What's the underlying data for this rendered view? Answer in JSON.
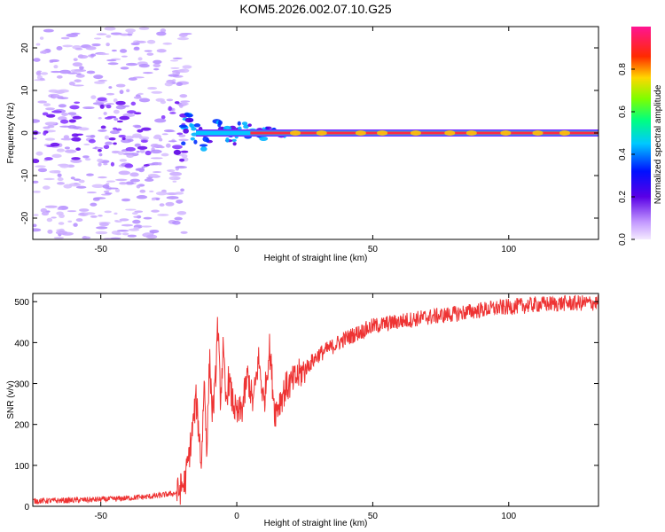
{
  "title": "KOM5.2026.002.07.10.G25",
  "chart_data": [
    {
      "type": "heatmap",
      "name": "spectrogram",
      "xlabel": "Height of straight line (km)",
      "ylabel": "Frequency (Hz)",
      "xlim": [
        -75,
        133
      ],
      "ylim": [
        -25,
        25
      ],
      "xticks": [
        -50,
        0,
        50,
        100
      ],
      "yticks": [
        -20,
        -10,
        0,
        10,
        20
      ],
      "grid": false,
      "description_points": {
        "noise_region_km": [
          -75,
          -20
        ],
        "transition_km": [
          -20,
          25
        ],
        "stable_line_frequency_hz": 0
      },
      "colorbar": {
        "label": "Normalized spectral amplitude",
        "range": [
          0.0,
          1.0
        ],
        "ticks": [
          0.0,
          0.2,
          0.4,
          0.6,
          0.8
        ]
      }
    },
    {
      "type": "line",
      "name": "snr",
      "xlabel": "Height of straight line (km)",
      "ylabel": "SNR (v/v)",
      "xlim": [
        -75,
        133
      ],
      "ylim": [
        0,
        520
      ],
      "xticks": [
        -50,
        0,
        50,
        100
      ],
      "yticks": [
        0,
        100,
        200,
        300,
        400,
        500
      ],
      "grid": false,
      "color": "#ee3333",
      "series": [
        {
          "name": "SNR",
          "x": [
            -75,
            -60,
            -45,
            -30,
            -22,
            -19,
            -17,
            -15,
            -14,
            -13,
            -12,
            -11,
            -10,
            -9,
            -8,
            -7,
            -6,
            -5,
            -4,
            -3,
            -2,
            0,
            2,
            4,
            6,
            8,
            10,
            12,
            14,
            16,
            18,
            20,
            22,
            25,
            30,
            35,
            40,
            45,
            50,
            60,
            70,
            80,
            90,
            100,
            110,
            120,
            133
          ],
          "values": [
            10,
            12,
            15,
            22,
            30,
            60,
            150,
            260,
            190,
            100,
            310,
            140,
            360,
            230,
            280,
            450,
            260,
            380,
            250,
            310,
            270,
            220,
            240,
            320,
            250,
            360,
            250,
            390,
            230,
            260,
            290,
            300,
            315,
            335,
            370,
            390,
            410,
            425,
            440,
            452,
            462,
            470,
            480,
            487,
            493,
            496,
            497
          ]
        }
      ]
    }
  ]
}
